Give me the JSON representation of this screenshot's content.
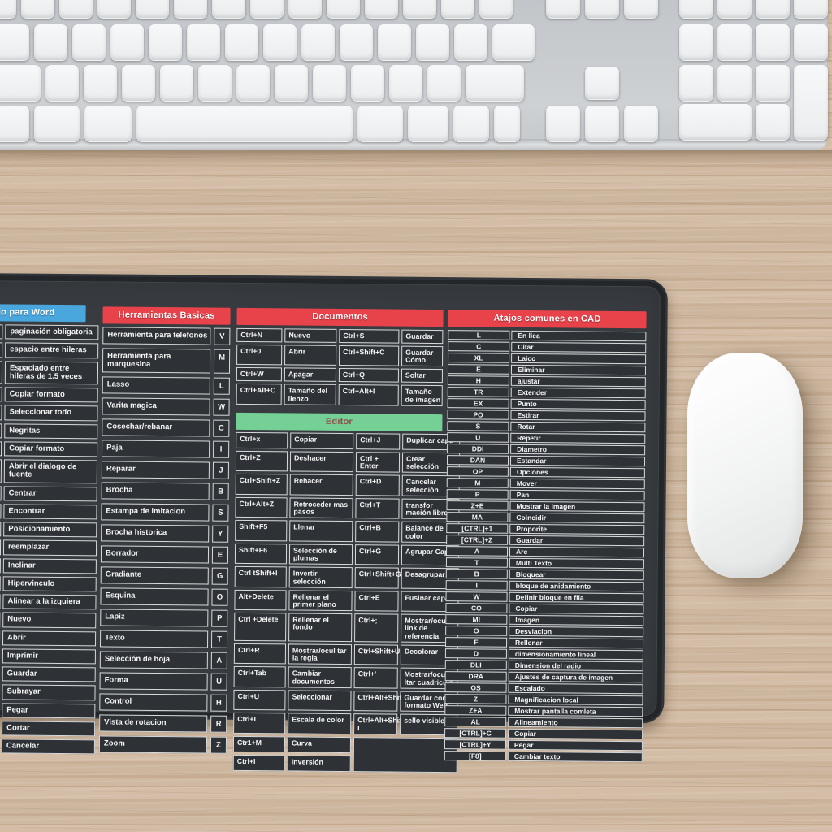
{
  "colors": {
    "header_blue": "#4aa7de",
    "header_red": "#e8434b",
    "header_green": "#74d094",
    "editor_title_text": "#8f4f49",
    "pad_surface": "#383c41",
    "cell_bg": "#2e3237"
  },
  "mousepad": {
    "word": {
      "title": "e atajo para Word",
      "rows": [
        "paginación obligatoria",
        "espacio entre hileras",
        "Espaciado entre hileras de 1.5 veces",
        "Copiar formato",
        "Seleccionar todo",
        "Negritas",
        "Copiar formato",
        "Abrir el dialogo de fuente",
        "Centrar",
        "Encontrar",
        "Posicionamiento",
        "reemplazar",
        "Inclinar",
        "Hipervinculo",
        "Alinear a la izquiera",
        "Nuevo",
        "Abrir",
        "Imprimir",
        "Guardar",
        "Subrayar",
        "Pegar",
        "Cortar",
        "Cancelar"
      ]
    },
    "tools": {
      "title": "Herramientas Basicas",
      "rows": [
        [
          "Herramienta para telefonos",
          "V"
        ],
        [
          "Herramienta para marquesina",
          "M"
        ],
        [
          "Lasso",
          "L"
        ],
        [
          "Varita magica",
          "W"
        ],
        [
          "Cosechar/rebanar",
          "C"
        ],
        [
          "Paja",
          "I"
        ],
        [
          "Reparar",
          "J"
        ],
        [
          "Brocha",
          "B"
        ],
        [
          "Estampa de imitacion",
          "S"
        ],
        [
          "Brocha historica",
          "Y"
        ],
        [
          "Borrador",
          "E"
        ],
        [
          "Gradiante",
          "G"
        ],
        [
          "Esquina",
          "O"
        ],
        [
          "Lapiz",
          "P"
        ],
        [
          "Texto",
          "T"
        ],
        [
          "Selección de hoja",
          "A"
        ],
        [
          "Forma",
          "U"
        ],
        [
          "Control",
          "H"
        ],
        [
          "Vista de rotacion",
          "R"
        ],
        [
          "Zoom",
          "Z"
        ]
      ]
    },
    "documents": {
      "title": "Documentos",
      "rows": [
        [
          "Ctrl+N",
          "Nuevo",
          "Ctrl+S",
          "Guardar"
        ],
        [
          "Ctrl+0",
          "Abrir",
          "Ctrl+Shift+C",
          "Guardar Cómo"
        ],
        [
          "Ctrl+W",
          "Apagar",
          "Ctrl+Q",
          "Soltar"
        ],
        [
          "Ctrl+Alt+C",
          "Tamaño del lienzo",
          "Ctrl+Alt+I",
          "Tamaño de imagen"
        ]
      ]
    },
    "editor": {
      "title": "Editor",
      "rows": [
        [
          "Ctrl+x",
          "Copiar",
          "Ctrl+J",
          "Duplicar capa"
        ],
        [
          "Ctrl+Z",
          "Deshacer",
          "Ctrl + Enter",
          "Crear selección"
        ],
        [
          "Ctrl+Shift+Z",
          "Rehacer",
          "Ctrl+D",
          "Cancelar selección"
        ],
        [
          "Ctrl+Alt+Z",
          "Retroceder mas pasos",
          "Ctrl+T",
          "transfor mación libre"
        ],
        [
          "Shift+F5",
          "Llenar",
          "Ctrl+B",
          "Balance de color"
        ],
        [
          "Shift+F6",
          "Selección de plumas",
          "Ctrl+G",
          "Agrupar Capas"
        ],
        [
          "Ctrl tShift+I",
          "Invertir selección",
          "Ctrl+Shift+G",
          "Desagrupar"
        ],
        [
          "Alt+Delete",
          "Rellenar el primer plano",
          "Ctrl+E",
          "Fusinar capa"
        ],
        [
          "Ctrl +Delete",
          "Rellenar el fondo",
          "Ctrl+;",
          "Mostrar/ocultar link de referencia"
        ],
        [
          "Ctrl+R",
          "Mostrar/ocul tar la regla",
          "Ctrl+Shift+U",
          "Decolorar"
        ],
        [
          "Ctrl+Tab",
          "Cambiar documentos",
          "Ctrl+'",
          "Mostrar/ocu ltar cuadricula"
        ],
        [
          "Ctrl+U",
          "Seleccionar",
          "Ctrl+Alt+Shift+S",
          "Guardar como formato Web"
        ],
        [
          "Ctrl+L",
          "Escala de color",
          "Ctrl+Alt+Shift+E I",
          "sello visible"
        ],
        [
          "Ctr1+M",
          "Curva"
        ],
        [
          "Ctrl+I",
          "Inversión"
        ]
      ]
    },
    "cad": {
      "title": "Atajos comunes en CAD",
      "rows": [
        [
          "L",
          "En liea"
        ],
        [
          "C",
          "Citar"
        ],
        [
          "XL",
          "Laico"
        ],
        [
          "E",
          "Eliminar"
        ],
        [
          "H",
          "ajustar"
        ],
        [
          "TR",
          "Extender"
        ],
        [
          "EX",
          "Punto"
        ],
        [
          "PO",
          "Estirar"
        ],
        [
          "S",
          "Rotar"
        ],
        [
          "U",
          "Repetir"
        ],
        [
          "DDI",
          "Diametro"
        ],
        [
          "DAN",
          "Estandar"
        ],
        [
          "OP",
          "Opciones"
        ],
        [
          "M",
          "Mover"
        ],
        [
          "P",
          "Pan"
        ],
        [
          "Z+E",
          "Mostrar la imagen"
        ],
        [
          "MA",
          "Coincidir"
        ],
        [
          "[CTRL]+1",
          "Proporite"
        ],
        [
          "[CTRL]+Z",
          "Guardar"
        ],
        [
          "A",
          "Arc"
        ],
        [
          "T",
          "Multi Texto"
        ],
        [
          "B",
          "Bloquear"
        ],
        [
          "I",
          "bloque de anidamiento"
        ],
        [
          "W",
          "Definir bloque en fila"
        ],
        [
          "CO",
          "Copiar"
        ],
        [
          "MI",
          "Imagen"
        ],
        [
          "O",
          "Desviacion"
        ],
        [
          "F",
          "Rellenar"
        ],
        [
          "D",
          "dimensionamiento lineal"
        ],
        [
          "DLI",
          "Dimension del radio"
        ],
        [
          "DRA",
          "Ajustes de captura de imagen"
        ],
        [
          "OS",
          "Escalado"
        ],
        [
          "Z",
          "Magnificacion local"
        ],
        [
          "Z+A",
          "Mostrar pantalla comleta"
        ],
        [
          "AL",
          "Alineamiento"
        ],
        [
          "[CTRL]+C",
          "Copiar"
        ],
        [
          "[CTRL]+Y",
          "Pegar"
        ],
        [
          "[F8]",
          "Cambiar texto"
        ]
      ]
    }
  }
}
